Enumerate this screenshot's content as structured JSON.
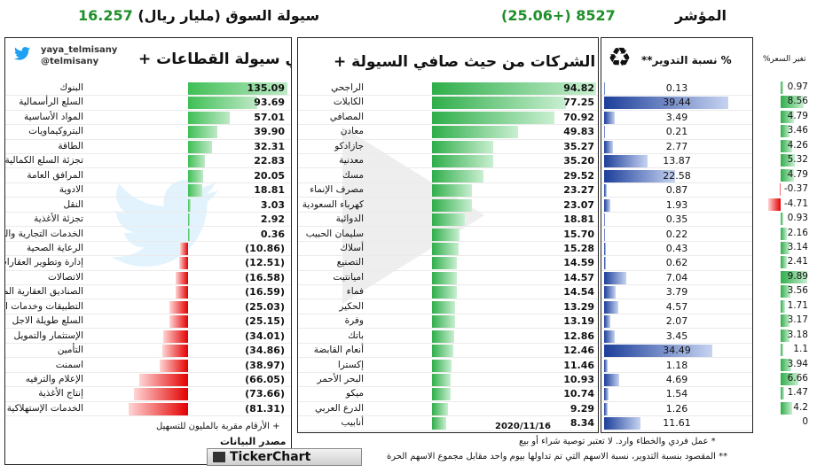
{
  "header": {
    "liquidity_label": "سيولة السوق (مليار ريال)",
    "liquidity_value": "16.257",
    "index_label": "المؤشر",
    "index_value": "8527 (+25.06)"
  },
  "sectors": {
    "title": "صافي سيولة القطاعات +",
    "handle": "yaya_telmisany",
    "handle2": "@telmisany",
    "footnote": "+ الأرقام مقربة بالمليون للتسهيل",
    "rows": [
      {
        "name": "البنوك",
        "value": "135.09",
        "num": 135.09
      },
      {
        "name": "السلع الرأسمالية",
        "value": "93.69",
        "num": 93.69
      },
      {
        "name": "المواد الأساسية",
        "value": "57.01",
        "num": 57.01
      },
      {
        "name": "البتروكيماويات",
        "value": "39.90",
        "num": 39.9
      },
      {
        "name": "الطاقة",
        "value": "32.31",
        "num": 32.31
      },
      {
        "name": "تجزئة السلع الكمالية",
        "value": "22.83",
        "num": 22.83
      },
      {
        "name": "المرافق العامة",
        "value": "20.05",
        "num": 20.05
      },
      {
        "name": "الادوية",
        "value": "18.81",
        "num": 18.81
      },
      {
        "name": "النقل",
        "value": "3.03",
        "num": 3.03
      },
      {
        "name": "تجزئة الأغذية",
        "value": "2.92",
        "num": 2.92
      },
      {
        "name": "الخدمات التجارية والمهنية",
        "value": "0.36",
        "num": 0.36
      },
      {
        "name": "الرعاية الصحية",
        "value": "(10.86)",
        "num": -10.86
      },
      {
        "name": "إدارة وتطوير العقارات",
        "value": "(12.51)",
        "num": -12.51
      },
      {
        "name": "الاتصالات",
        "value": "(16.58)",
        "num": -16.58
      },
      {
        "name": "الصناديق العقارية المتداولة",
        "value": "(16.59)",
        "num": -16.59
      },
      {
        "name": "التطبيقات وخدمات التقنية",
        "value": "(25.03)",
        "num": -25.03
      },
      {
        "name": "السلع طويلة الاجل",
        "value": "(25.15)",
        "num": -25.15
      },
      {
        "name": "الإستثمار والتمويل",
        "value": "(34.01)",
        "num": -34.01
      },
      {
        "name": "التأمين",
        "value": "(34.86)",
        "num": -34.86
      },
      {
        "name": "اسمنت",
        "value": "(38.97)",
        "num": -38.97
      },
      {
        "name": "الإعلام والترفيه",
        "value": "(66.05)",
        "num": -66.05
      },
      {
        "name": "إنتاج الأغذية",
        "value": "(73.66)",
        "num": -73.66
      },
      {
        "name": "الخدمات الإستهلاكية",
        "value": "(81.31)",
        "num": -81.31
      }
    ]
  },
  "companies": {
    "title": "أعلى الشركات من حيث صافي السيولة +",
    "date": "2020/11/16",
    "rows": [
      {
        "name": "الراجحي",
        "value": "94.82",
        "num": 94.82
      },
      {
        "name": "الكابلات",
        "value": "77.25",
        "num": 77.25
      },
      {
        "name": "المصافي",
        "value": "70.92",
        "num": 70.92
      },
      {
        "name": "معادن",
        "value": "49.83",
        "num": 49.83
      },
      {
        "name": "جازادكو",
        "value": "35.27",
        "num": 35.27
      },
      {
        "name": "معدنية",
        "value": "35.20",
        "num": 35.2
      },
      {
        "name": "مسك",
        "value": "29.52",
        "num": 29.52
      },
      {
        "name": "مصرف الإنماء",
        "value": "23.27",
        "num": 23.27
      },
      {
        "name": "كهرباء السعودية",
        "value": "23.07",
        "num": 23.07
      },
      {
        "name": "الدوائية",
        "value": "18.81",
        "num": 18.81
      },
      {
        "name": "سليمان الحبيب",
        "value": "15.70",
        "num": 15.7
      },
      {
        "name": "أسلاك",
        "value": "15.28",
        "num": 15.28
      },
      {
        "name": "التصنيع",
        "value": "14.59",
        "num": 14.59
      },
      {
        "name": "اميانتيت",
        "value": "14.57",
        "num": 14.57
      },
      {
        "name": "فماء",
        "value": "14.54",
        "num": 14.54
      },
      {
        "name": "الحكير",
        "value": "13.29",
        "num": 13.29
      },
      {
        "name": "وفرة",
        "value": "13.19",
        "num": 13.19
      },
      {
        "name": "باتك",
        "value": "12.86",
        "num": 12.86
      },
      {
        "name": "أنعام القابضة",
        "value": "12.46",
        "num": 12.46
      },
      {
        "name": "إكسترا",
        "value": "11.46",
        "num": 11.46
      },
      {
        "name": "البحر الأحمر",
        "value": "10.93",
        "num": 10.93
      },
      {
        "name": "ميكو",
        "value": "10.74",
        "num": 10.74
      },
      {
        "name": "الدرع العربي",
        "value": "9.29",
        "num": 9.29
      },
      {
        "name": "أنابيب",
        "value": "8.34",
        "num": 8.34
      }
    ]
  },
  "turnover": {
    "title": "% نسبة التدوير**",
    "values": [
      {
        "value": "0.13",
        "num": 0.13
      },
      {
        "value": "39.44",
        "num": 39.44
      },
      {
        "value": "3.49",
        "num": 3.49
      },
      {
        "value": "0.21",
        "num": 0.21
      },
      {
        "value": "2.77",
        "num": 2.77
      },
      {
        "value": "13.87",
        "num": 13.87
      },
      {
        "value": "22.58",
        "num": 22.58
      },
      {
        "value": "0.87",
        "num": 0.87
      },
      {
        "value": "1.93",
        "num": 1.93
      },
      {
        "value": "0.35",
        "num": 0.35
      },
      {
        "value": "0.22",
        "num": 0.22
      },
      {
        "value": "0.43",
        "num": 0.43
      },
      {
        "value": "0.62",
        "num": 0.62
      },
      {
        "value": "7.04",
        "num": 7.04
      },
      {
        "value": "3.79",
        "num": 3.79
      },
      {
        "value": "4.57",
        "num": 4.57
      },
      {
        "value": "2.07",
        "num": 2.07
      },
      {
        "value": "3.45",
        "num": 3.45
      },
      {
        "value": "34.49",
        "num": 34.49
      },
      {
        "value": "1.18",
        "num": 1.18
      },
      {
        "value": "4.69",
        "num": 4.69
      },
      {
        "value": "1.54",
        "num": 1.54
      },
      {
        "value": "1.26",
        "num": 1.26
      },
      {
        "value": "11.61",
        "num": 11.61
      }
    ]
  },
  "price_change": {
    "title": "تغير السعر%",
    "values": [
      {
        "value": "0.97",
        "num": 0.97
      },
      {
        "value": "8.56",
        "num": 8.56
      },
      {
        "value": "4.79",
        "num": 4.79
      },
      {
        "value": "3.46",
        "num": 3.46
      },
      {
        "value": "4.26",
        "num": 4.26
      },
      {
        "value": "5.32",
        "num": 5.32
      },
      {
        "value": "4.79",
        "num": 4.79
      },
      {
        "value": "-0.37",
        "num": -0.37
      },
      {
        "value": "-4.71",
        "num": -4.71
      },
      {
        "value": "0.93",
        "num": 0.93
      },
      {
        "value": "2.16",
        "num": 2.16
      },
      {
        "value": "3.14",
        "num": 3.14
      },
      {
        "value": "2.41",
        "num": 2.41
      },
      {
        "value": "9.89",
        "num": 9.89
      },
      {
        "value": "3.56",
        "num": 3.56
      },
      {
        "value": "1.71",
        "num": 1.71
      },
      {
        "value": "3.17",
        "num": 3.17
      },
      {
        "value": "3.18",
        "num": 3.18
      },
      {
        "value": "1.1",
        "num": 1.1
      },
      {
        "value": "3.94",
        "num": 3.94
      },
      {
        "value": "6.66",
        "num": 6.66
      },
      {
        "value": "1.47",
        "num": 1.47
      },
      {
        "value": "4.2",
        "num": 4.2
      },
      {
        "value": "0",
        "num": 0
      }
    ]
  },
  "source": {
    "label": "مصدر البيانات",
    "brand": "TickerChart"
  },
  "notes": {
    "note1": "* عمل فردي والخطاء وارد. لا تعتبر توصية شراء أو بيع",
    "note2": "** المقصود بنسبة التدوير، نسبة الاسهم التي تم تداولها بيوم واحد مقابل مجموع الاسهم الحرة"
  },
  "colors": {
    "green": "#1f8f2a",
    "red": "#e40000",
    "blue": "#1d3f9a",
    "twitter": "#1da1f2"
  }
}
